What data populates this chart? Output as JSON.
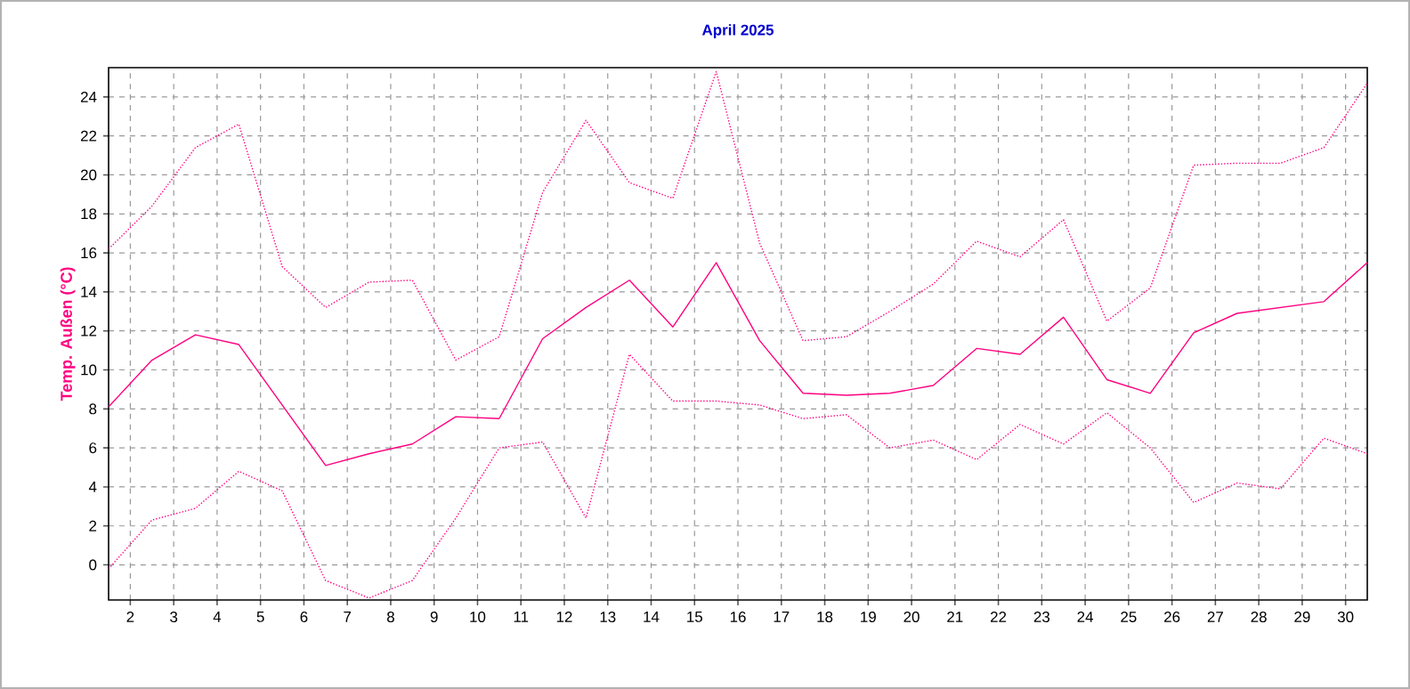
{
  "chart_data": {
    "type": "line",
    "title": "April 2025",
    "ylabel": "Temp. Außen (°C)",
    "x": [
      1.5,
      2.5,
      3.5,
      4.5,
      5.5,
      6.5,
      7.5,
      8.5,
      9.5,
      10.5,
      11.5,
      12.5,
      13.5,
      14.5,
      15.5,
      16.5,
      17.5,
      18.5,
      19.5,
      20.5,
      21.5,
      22.5,
      23.5,
      24.5,
      25.5,
      26.5,
      27.5,
      28.5,
      29.5,
      30.5
    ],
    "series": [
      {
        "color": "#ff0080",
        "line_style": "dotted",
        "values": [
          16.2,
          18.4,
          21.4,
          22.6,
          15.3,
          13.2,
          14.5,
          14.6,
          10.5,
          11.7,
          19.1,
          22.8,
          19.6,
          18.8,
          25.3,
          16.5,
          11.5,
          11.7,
          13.0,
          14.4,
          16.6,
          15.8,
          17.7,
          12.5,
          14.2,
          20.5,
          20.6,
          20.6,
          21.4,
          24.7
        ]
      },
      {
        "color": "#ff0080",
        "line_style": "solid",
        "values": [
          8.1,
          10.5,
          11.8,
          11.3,
          8.2,
          5.1,
          5.7,
          6.2,
          7.6,
          7.5,
          11.6,
          13.2,
          14.6,
          12.2,
          15.5,
          11.5,
          8.8,
          8.7,
          8.8,
          9.2,
          11.1,
          10.8,
          12.7,
          9.5,
          8.8,
          11.9,
          12.9,
          13.2,
          13.5,
          15.5
        ]
      },
      {
        "color": "#ff0080",
        "line_style": "dotted",
        "values": [
          -0.2,
          2.3,
          2.9,
          4.8,
          3.8,
          -0.8,
          -1.7,
          -0.8,
          2.4,
          6.0,
          6.3,
          2.4,
          10.8,
          8.4,
          8.4,
          8.2,
          7.5,
          7.7,
          6.0,
          6.4,
          5.4,
          7.2,
          6.2,
          7.8,
          6.0,
          3.2,
          4.2,
          3.9,
          6.5,
          5.7
        ]
      }
    ],
    "xlim": [
      1.5,
      30.5
    ],
    "ylim": [
      -1.8,
      25.5
    ],
    "xticks": [
      2,
      3,
      4,
      5,
      6,
      7,
      8,
      9,
      10,
      11,
      12,
      13,
      14,
      15,
      16,
      17,
      18,
      19,
      20,
      21,
      22,
      23,
      24,
      25,
      26,
      27,
      28,
      29,
      30
    ],
    "yticks": [
      0,
      2,
      4,
      6,
      8,
      10,
      12,
      14,
      16,
      18,
      20,
      22,
      24
    ],
    "grid": true,
    "marker": "none"
  }
}
